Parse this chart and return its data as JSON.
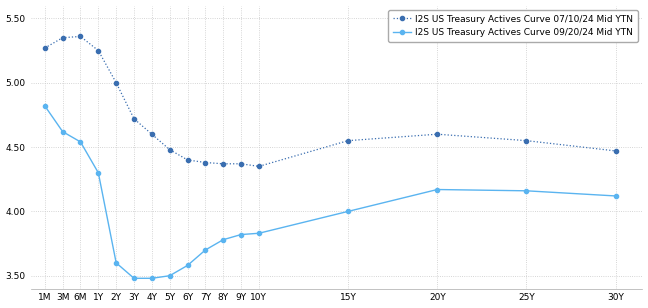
{
  "curve1_label": "I2S US Treasury Actives Curve 07/10/24 Mid YTN",
  "curve2_label": "I2S US Treasury Actives Curve 09/20/24 Mid YTN",
  "x_labels": [
    "1M",
    "3M",
    "6M",
    "1Y",
    "2Y",
    "3Y",
    "4Y",
    "5Y",
    "6Y",
    "7Y",
    "8Y",
    "9Y",
    "10Y",
    "15Y",
    "20Y",
    "25Y",
    "30Y"
  ],
  "x_positions": [
    0,
    1,
    2,
    3,
    4,
    5,
    6,
    7,
    8,
    9,
    10,
    11,
    12,
    17,
    22,
    27,
    32
  ],
  "curve1_y": [
    5.27,
    5.35,
    5.36,
    5.25,
    5.0,
    4.72,
    4.6,
    4.48,
    4.4,
    4.38,
    4.37,
    4.37,
    4.35,
    4.55,
    4.6,
    4.55,
    4.47
  ],
  "curve2_y": [
    4.82,
    4.62,
    4.54,
    4.3,
    3.6,
    3.48,
    3.48,
    3.5,
    3.58,
    3.7,
    3.78,
    3.82,
    3.83,
    4.0,
    4.17,
    4.16,
    4.12
  ],
  "curve1_color": "#3a6eb0",
  "curve2_color": "#5ab4f0",
  "curve1_style": "dotted",
  "curve2_style": "solid",
  "ylim": [
    3.4,
    5.6
  ],
  "yticks": [
    3.5,
    4.0,
    4.5,
    5.0,
    5.5
  ],
  "background_color": "#ffffff",
  "grid_color": "#c8c8c8",
  "markersize": 3,
  "legend_fontsize": 6.5,
  "tick_fontsize": 6.5
}
